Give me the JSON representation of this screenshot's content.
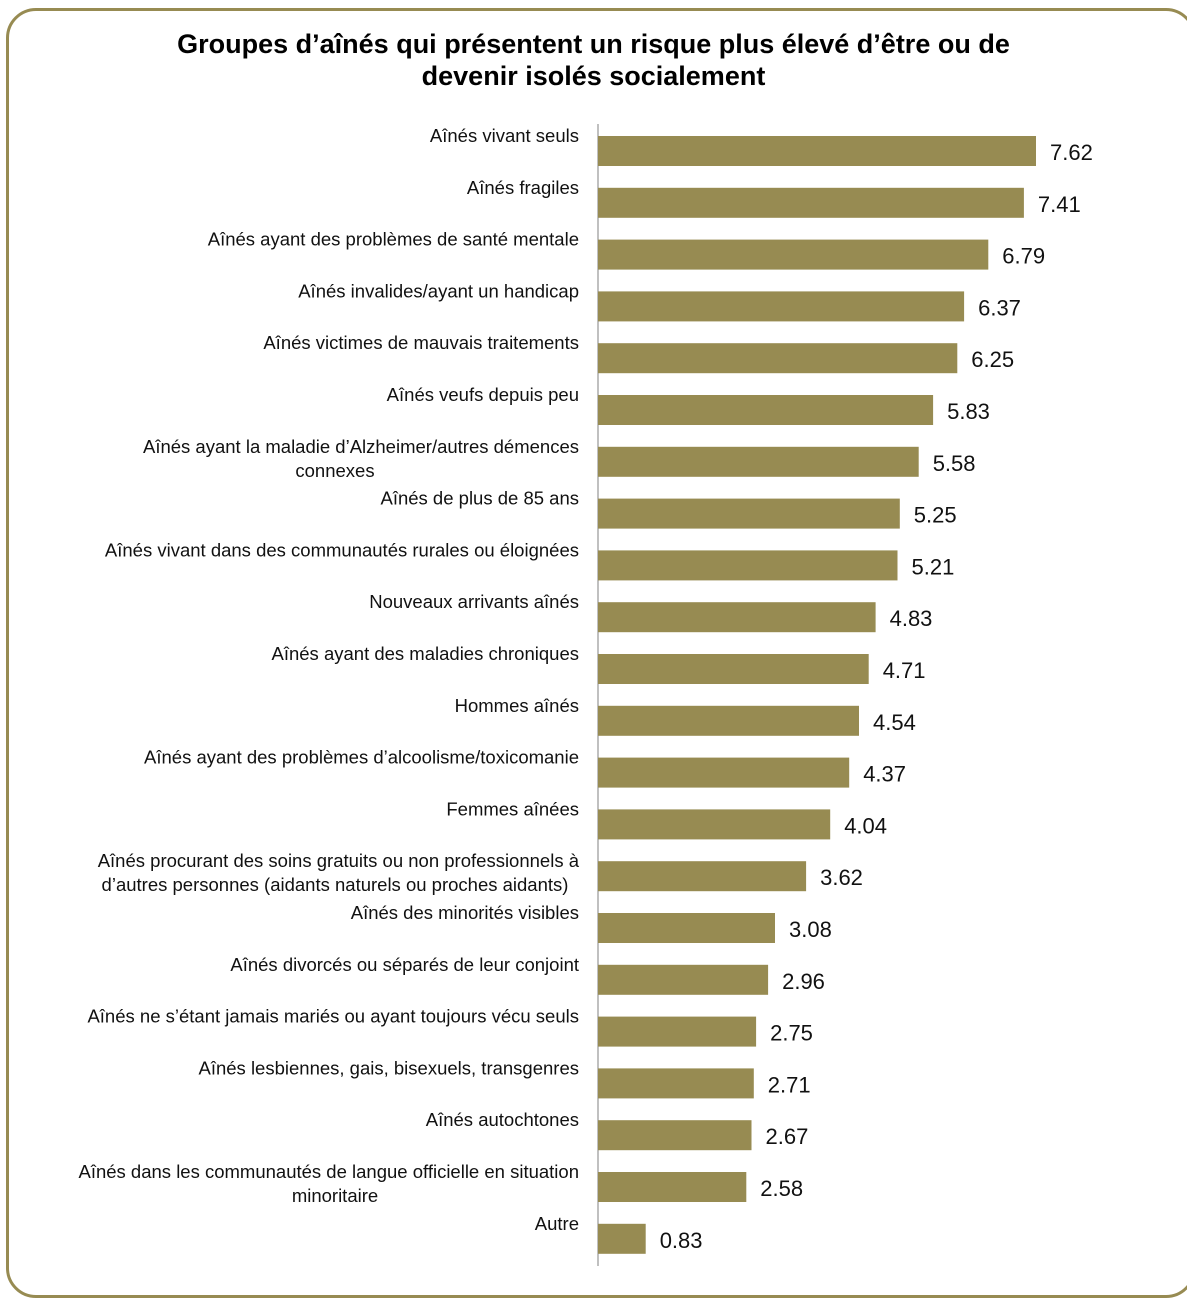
{
  "chart_data": {
    "type": "bar",
    "orientation": "horizontal",
    "title": "Groupes d’aînés qui présentent un risque plus élevé d’être ou de devenir isolés socialement",
    "title_lines": [
      "Groupes d’aînés qui présentent un risque plus élevé d’être ou de",
      "devenir isolés socialement"
    ],
    "xlim": [
      0,
      7.62
    ],
    "grid": false,
    "legend": "none",
    "bar_color": "#978b52",
    "frame_color": "#978b52",
    "categories": [
      [
        "Aînés vivant seuls"
      ],
      [
        "Aînés fragiles"
      ],
      [
        "Aînés ayant des problèmes de santé mentale"
      ],
      [
        "Aînés invalides/ayant un handicap"
      ],
      [
        "Aînés  victimes de mauvais traitements"
      ],
      [
        "Aînés veufs depuis peu"
      ],
      [
        "Aînés ayant la maladie d’Alzheimer/autres démences",
        "connexes"
      ],
      [
        "Aînés de plus de 85 ans"
      ],
      [
        "Aînés vivant dans des communautés rurales ou éloignées"
      ],
      [
        "Nouveaux arrivants aînés"
      ],
      [
        "Aînés ayant des maladies chroniques"
      ],
      [
        "Hommes aînés"
      ],
      [
        "Aînés ayant des problèmes  d’alcoolisme/toxicomanie"
      ],
      [
        "Femmes aînées"
      ],
      [
        "Aînés procurant des soins gratuits ou non professionnels à",
        "d’autres personnes (aidants naturels ou proches aidants)"
      ],
      [
        "Aînés des minorités visibles"
      ],
      [
        "Aînés divorcés ou séparés de leur conjoint"
      ],
      [
        "Aînés ne s’étant jamais mariés ou ayant toujours vécu seuls"
      ],
      [
        "Aînés lesbiennes, gais, bisexuels, transgenres"
      ],
      [
        "Aînés autochtones"
      ],
      [
        "Aînés dans les communautés de langue officielle en situation",
        "minoritaire"
      ],
      [
        "Autre"
      ]
    ],
    "values": [
      7.62,
      7.41,
      6.79,
      6.37,
      6.25,
      5.83,
      5.58,
      5.25,
      5.21,
      4.83,
      4.71,
      4.54,
      4.37,
      4.04,
      3.62,
      3.08,
      2.96,
      2.75,
      2.71,
      2.67,
      2.58,
      0.83
    ],
    "value_labels": [
      "7.62",
      "7.41",
      "6.79",
      "6.37",
      "6.25",
      "5.83",
      "5.58",
      "5.25",
      "5.21",
      "4.83",
      "4.71",
      "4.54",
      "4.37",
      "4.04",
      "3.62",
      "3.08",
      "2.96",
      "2.75",
      "2.71",
      "2.67",
      "2.58",
      "0.83"
    ]
  }
}
